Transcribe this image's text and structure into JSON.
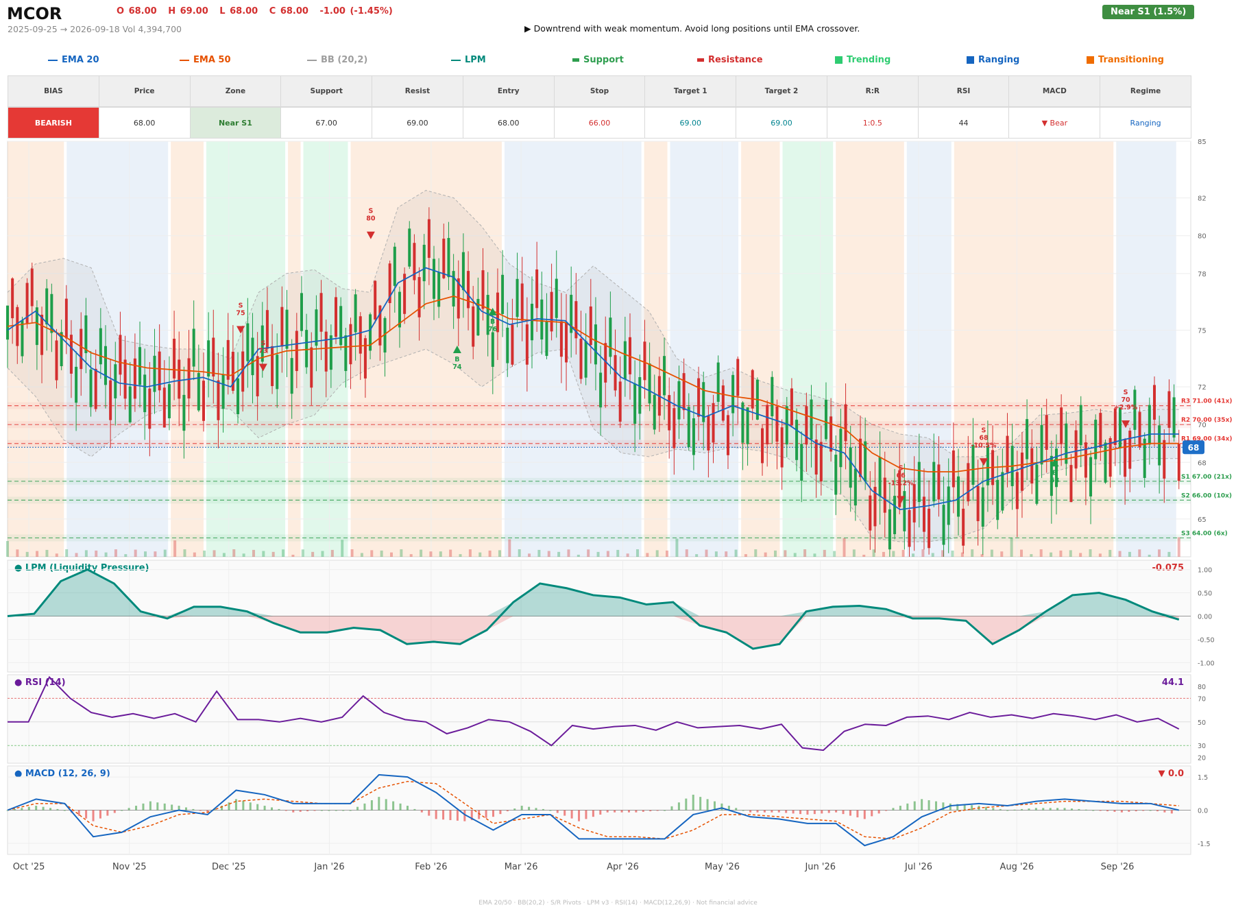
{
  "header": {
    "ticker": "MCOR",
    "ohlc": {
      "open": "O 68.00",
      "high": "H 69.00",
      "low": "L 68.00",
      "close": "C 68.00",
      "change": "-1.00  (-1.45%)"
    },
    "range": "2025-09-25 → 2026-09-18   Vol 4,394,700",
    "summary": "▶  Downtrend with weak momentum. Avoid long positions until EMA crossover.",
    "zone_badge": "Near S1  (1.5%)"
  },
  "legend": [
    {
      "label": "EMA 20",
      "color": "#1565c0",
      "marker": "line"
    },
    {
      "label": "EMA 50",
      "color": "#e65100",
      "marker": "line"
    },
    {
      "label": "BB (20,2)",
      "color": "#9e9e9e",
      "marker": "line"
    },
    {
      "label": "LPM",
      "color": "#00897b",
      "marker": "line"
    },
    {
      "label": "Support",
      "color": "#2e9e4f",
      "marker": "dash"
    },
    {
      "label": "Resistance",
      "color": "#d32f2f",
      "marker": "dash"
    },
    {
      "label": "Trending",
      "color": "#2ecc71",
      "marker": "square"
    },
    {
      "label": "Ranging",
      "color": "#1565c0",
      "marker": "square"
    },
    {
      "label": "Transitioning",
      "color": "#ef6c00",
      "marker": "square"
    }
  ],
  "table": {
    "headers": [
      "BIAS",
      "Price",
      "Zone",
      "Support",
      "Resist",
      "Entry",
      "Stop",
      "Target 1",
      "Target 2",
      "R:R",
      "RSI",
      "MACD",
      "Regime"
    ],
    "values": [
      "BEARISH",
      "68.00",
      "Near S1",
      "67.00",
      "69.00",
      "68.00",
      "66.00",
      "69.00",
      "69.00",
      "1:0.5",
      "44",
      "▼ Bear",
      "Ranging"
    ],
    "colors": [
      "#ffffff",
      "#333333",
      "#2e7d32",
      "#333333",
      "#333333",
      "#333333",
      "#d32f2f",
      "#00838f",
      "#00838f",
      "#d32f2f",
      "#333333",
      "#d32f2f",
      "#1565c0"
    ],
    "bias_bg": "#e53935",
    "zone_bg": "#dcebdc"
  },
  "chart_data": [
    {
      "type": "candlestick",
      "title": "MCOR",
      "ylim": [
        63,
        85
      ],
      "yticks": [
        65,
        68,
        70,
        72,
        75,
        78,
        80,
        82,
        85
      ],
      "x_ticks": [
        "Oct '25",
        "Nov '25",
        "Dec '25",
        "Jan '26",
        "Feb '26",
        "Mar '26",
        "Apr '26",
        "May '26",
        "Jun '26",
        "Jul '26",
        "Aug '26",
        "Sep '26"
      ],
      "last_price_label": "68",
      "series_ema20": [
        75.0,
        76.0,
        74.5,
        73.0,
        72.2,
        72.0,
        72.3,
        72.5,
        72.0,
        74.0,
        74.2,
        74.4,
        74.6,
        75.0,
        77.5,
        78.3,
        77.8,
        76.0,
        75.3,
        75.6,
        75.5,
        74.0,
        72.5,
        71.8,
        71.0,
        70.4,
        71.0,
        70.5,
        70.0,
        69.0,
        68.5,
        66.5,
        65.5,
        65.7,
        66.0,
        67.0,
        67.5,
        68.0,
        68.5,
        68.8,
        69.2,
        69.5,
        69.5
      ],
      "series_ema50": [
        75.2,
        75.4,
        74.7,
        73.8,
        73.3,
        73.0,
        72.9,
        72.8,
        72.6,
        73.5,
        73.9,
        74.0,
        74.1,
        74.2,
        75.3,
        76.4,
        76.8,
        76.3,
        75.6,
        75.5,
        75.4,
        74.5,
        73.8,
        73.2,
        72.5,
        71.8,
        71.5,
        71.3,
        70.8,
        70.3,
        69.8,
        68.5,
        67.7,
        67.5,
        67.5,
        67.7,
        67.8,
        68.0,
        68.2,
        68.5,
        68.8,
        69.0,
        69.0
      ],
      "bb_upper": [
        77.0,
        78.5,
        78.8,
        78.3,
        74.5,
        74.2,
        74.0,
        74.0,
        73.5,
        77.0,
        78.0,
        78.2,
        77.2,
        77.0,
        81.5,
        82.4,
        82.0,
        80.5,
        78.5,
        77.5,
        77.0,
        78.4,
        77.2,
        76.0,
        73.5,
        72.5,
        73.0,
        72.3,
        71.8,
        71.5,
        71.0,
        70.0,
        69.5,
        69.3,
        68.3,
        68.3,
        69.0,
        70.5,
        70.6,
        70.8,
        70.6,
        70.8,
        70.8
      ],
      "bb_lower": [
        73.0,
        71.5,
        69.2,
        68.3,
        69.5,
        70.5,
        71.0,
        71.0,
        70.8,
        69.3,
        70.0,
        70.5,
        72.2,
        73.0,
        73.5,
        74.0,
        73.2,
        72.0,
        73.0,
        73.8,
        74.0,
        69.8,
        68.5,
        68.3,
        68.7,
        68.5,
        68.8,
        68.6,
        68.2,
        67.0,
        66.2,
        64.0,
        63.8,
        63.8,
        64.0,
        64.5,
        66.0,
        67.3,
        67.7,
        67.9,
        68.0,
        68.2,
        68.2
      ],
      "levels": [
        {
          "label": "R3 71.00 (41x)",
          "value": 71.0,
          "kind": "resistance"
        },
        {
          "label": "R2 70.00 (35x)",
          "value": 70.0,
          "kind": "resistance"
        },
        {
          "label": "R1 69.00 (34x)",
          "value": 69.0,
          "kind": "resistance"
        },
        {
          "label": "S1 67.00 (21x)",
          "value": 67.0,
          "kind": "support"
        },
        {
          "label": "S2 66.00 (10x)",
          "value": 66.0,
          "kind": "support"
        },
        {
          "label": "S3 64.00 (6x)",
          "value": 64.0,
          "kind": "support"
        }
      ],
      "signals": [
        {
          "type": "S",
          "label": "S 75",
          "value": 75.0
        },
        {
          "type": "S",
          "label": "S 73",
          "value": 73.0
        },
        {
          "type": "S",
          "label": "S 80",
          "value": 80.0
        },
        {
          "type": "B",
          "label": "B 74",
          "value": 74.0
        },
        {
          "type": "B",
          "label": "B 76",
          "value": 76.0
        },
        {
          "type": "S",
          "label": "S 66 -13.2%",
          "value": 66.0
        },
        {
          "type": "S",
          "label": "S 68 -10.5%",
          "value": 68.0
        },
        {
          "type": "B",
          "label": "B 68",
          "value": 68.0
        },
        {
          "type": "S",
          "label": "S 70 +2.9%",
          "value": 70.0
        }
      ],
      "regimes": [
        "Transitioning",
        "Ranging",
        "Transitioning",
        "Trending",
        "Transitioning",
        "Trending",
        "Transitioning",
        "Ranging",
        "Transitioning",
        "Ranging",
        "Transitioning",
        "Trending",
        "Transitioning",
        "Ranging",
        "Transitioning",
        "Ranging"
      ]
    },
    {
      "type": "area",
      "title": "● LPM (Liquidity Pressure)",
      "value_label": "-0.075",
      "ylim": [
        -1.2,
        1.2
      ],
      "yticks": [
        "1.00",
        "0.50",
        "0.00",
        "-0.50",
        "-1.00"
      ],
      "values": [
        0.0,
        0.05,
        0.75,
        1.0,
        0.7,
        0.1,
        -0.05,
        0.2,
        0.2,
        0.1,
        -0.15,
        -0.35,
        -0.35,
        -0.25,
        -0.3,
        -0.6,
        -0.55,
        -0.6,
        -0.3,
        0.3,
        0.7,
        0.6,
        0.45,
        0.4,
        0.25,
        0.3,
        -0.2,
        -0.35,
        -0.7,
        -0.6,
        0.1,
        0.2,
        0.22,
        0.15,
        -0.05,
        -0.05,
        -0.1,
        -0.6,
        -0.3,
        0.1,
        0.45,
        0.5,
        0.35,
        0.1,
        -0.075
      ]
    },
    {
      "type": "line",
      "title": "● RSI (14)",
      "value_label": "44.1",
      "ylim": [
        15,
        90
      ],
      "yticks": [
        "80",
        "70",
        "50",
        "30",
        "20"
      ],
      "values": [
        50,
        50,
        88,
        70,
        58,
        54,
        57,
        53,
        57,
        50,
        76,
        52,
        52,
        50,
        53,
        50,
        54,
        72,
        58,
        52,
        50,
        40,
        45,
        52,
        50,
        42,
        30,
        47,
        44,
        46,
        47,
        43,
        50,
        45,
        46,
        47,
        44,
        48,
        28,
        26,
        42,
        48,
        47,
        54,
        55,
        52,
        58,
        54,
        56,
        53,
        57,
        55,
        52,
        56,
        50,
        53,
        44
      ]
    },
    {
      "type": "bar",
      "title": "● MACD (12, 26, 9)",
      "value_label": "▼ 0.0",
      "ylim": [
        -2.0,
        2.0
      ],
      "yticks": [
        "1.5",
        "0.0",
        "-1.5"
      ],
      "macd": [
        0.0,
        0.5,
        0.3,
        -1.2,
        -1.0,
        -0.3,
        0.0,
        -0.2,
        0.9,
        0.7,
        0.3,
        0.3,
        0.3,
        1.6,
        1.5,
        0.8,
        -0.2,
        -0.9,
        -0.2,
        -0.2,
        -1.3,
        -1.3,
        -1.3,
        -1.3,
        -0.2,
        0.1,
        -0.3,
        -0.4,
        -0.6,
        -0.6,
        -1.6,
        -1.2,
        -0.3,
        0.2,
        0.3,
        0.2,
        0.4,
        0.5,
        0.4,
        0.3,
        0.3,
        0.0
      ],
      "signal": [
        0.0,
        0.3,
        0.3,
        -0.7,
        -1.0,
        -0.7,
        -0.2,
        -0.1,
        0.4,
        0.5,
        0.4,
        0.3,
        0.3,
        1.0,
        1.3,
        1.2,
        0.3,
        -0.6,
        -0.4,
        -0.2,
        -0.8,
        -1.2,
        -1.2,
        -1.3,
        -0.9,
        -0.2,
        -0.2,
        -0.3,
        -0.4,
        -0.5,
        -1.2,
        -1.3,
        -0.8,
        -0.1,
        0.1,
        0.2,
        0.3,
        0.4,
        0.4,
        0.4,
        0.3,
        0.2
      ]
    }
  ],
  "footer": "EMA 20/50  ·  BB(20,2)  ·  S/R Pivots  ·  LPM v3  ·  RSI(14)  ·  MACD(12,26,9)  ·  Not financial advice"
}
